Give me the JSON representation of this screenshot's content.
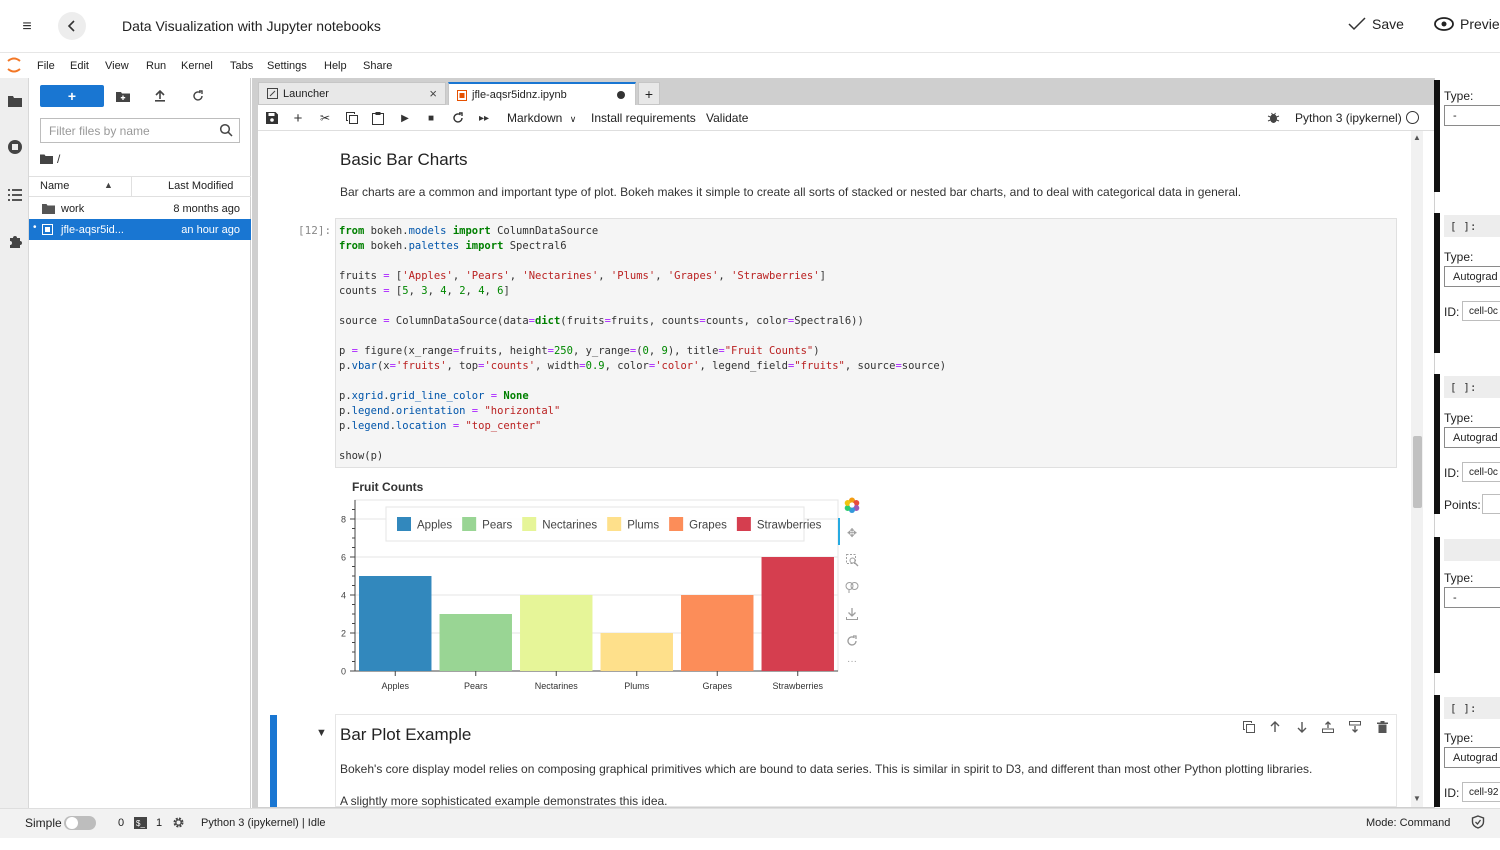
{
  "header": {
    "title": "Data Visualization with Jupyter notebooks",
    "save_label": "Save",
    "preview_label": "Previe"
  },
  "menu": [
    "File",
    "Edit",
    "View",
    "Run",
    "Kernel",
    "Tabs",
    "Settings",
    "Help",
    "Share"
  ],
  "filebrowser": {
    "filter_placeholder": "Filter files by name",
    "crumb": "/",
    "col_name": "Name",
    "col_modified": "Last Modified",
    "rows": [
      {
        "name": "work",
        "modified": "8 months ago"
      },
      {
        "name": "jfle-aqsr5id...",
        "modified": "an hour ago"
      }
    ]
  },
  "tabs": {
    "launcher": "Launcher",
    "notebook": "jfle-aqsr5idnz.ipynb"
  },
  "toolbar": {
    "cell_type": "Markdown",
    "install": "Install requirements",
    "validate": "Validate",
    "kernel": "Python 3 (ipykernel)"
  },
  "cells": {
    "heading1": "Basic Bar Charts",
    "para1": "Bar charts are a common and important type of plot. Bokeh makes it simple to create all sorts of stacked or nested bar charts, and to deal with categorical data in general.",
    "prompt": "[12]:",
    "heading2": "Bar Plot Example",
    "para2": "Bokeh's core display model relies on composing graphical primitives which are bound to data series. This is similar in spirit to D3, and different than most other Python plotting libraries.",
    "para3": "A slightly more sophisticated example demonstrates this idea."
  },
  "chart_data": {
    "type": "bar",
    "title": "Fruit Counts",
    "categories": [
      "Apples",
      "Pears",
      "Nectarines",
      "Plums",
      "Grapes",
      "Strawberries"
    ],
    "values": [
      5,
      3,
      4,
      2,
      4,
      6
    ],
    "colors": [
      "#3288bd",
      "#99d594",
      "#e6f598",
      "#fee08b",
      "#fc8d59",
      "#d53e4f"
    ],
    "ylim": [
      0,
      9
    ],
    "yticks": [
      0,
      2,
      4,
      6,
      8
    ],
    "legend": "top-center",
    "xgrid": false
  },
  "rightpanel": {
    "type_label": "Type:",
    "type_dash": "-",
    "type_auto": "Autograd",
    "id_label": "ID:",
    "id_1": "cell-0c",
    "id_2": "cell-0c",
    "id_3": "cell-92",
    "points_label": "Points:",
    "prompt": "[ ]:"
  },
  "statusbar": {
    "simple": "Simple",
    "count0": "0",
    "count1": "1",
    "kernel_status": "Python 3 (ipykernel) | Idle",
    "mode": "Mode: Command"
  }
}
